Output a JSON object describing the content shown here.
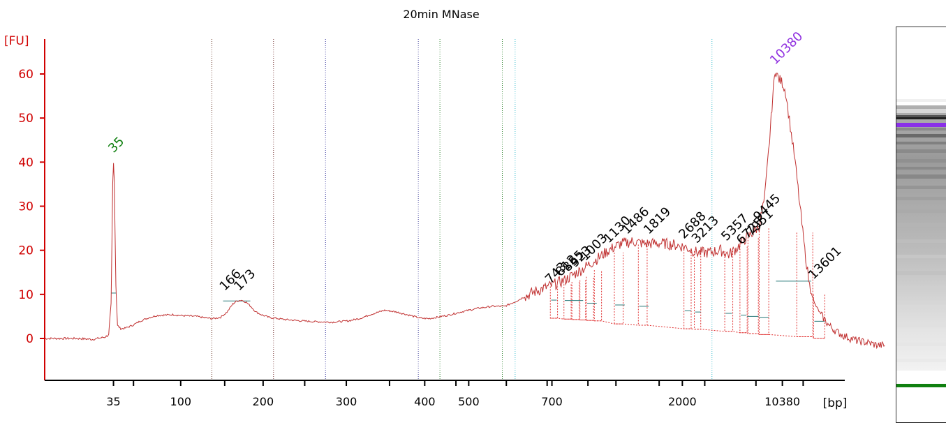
{
  "chart_data": {
    "type": "line",
    "title": "20min MNase",
    "xlabel": "[bp]",
    "ylabel": "[FU]",
    "ylim": [
      -9,
      68
    ],
    "yticks": [
      0,
      10,
      20,
      30,
      40,
      50,
      60
    ],
    "xaxis_scale": "nonlinear (migration-time based)",
    "xticks": [
      {
        "label": "35",
        "t": 0.086
      },
      {
        "label": "",
        "t": 0.111
      },
      {
        "label": "100",
        "t": 0.17
      },
      {
        "label": "",
        "t": 0.225
      },
      {
        "label": "200",
        "t": 0.273
      },
      {
        "label": "",
        "t": 0.325
      },
      {
        "label": "300",
        "t": 0.377
      },
      {
        "label": "",
        "t": 0.431
      },
      {
        "label": "400",
        "t": 0.475
      },
      {
        "label": "",
        "t": 0.514
      },
      {
        "label": "500",
        "t": 0.53
      },
      {
        "label": "",
        "t": 0.577
      },
      {
        "label": "",
        "t": 0.628
      },
      {
        "label": "700",
        "t": 0.634
      },
      {
        "label": "",
        "t": 0.679
      },
      {
        "label": "",
        "t": 0.714
      },
      {
        "label": "",
        "t": 0.768
      },
      {
        "label": "2000",
        "t": 0.797
      },
      {
        "label": "",
        "t": 0.825
      },
      {
        "label": "",
        "t": 0.889
      },
      {
        "label": "10380",
        "t": 0.922
      },
      {
        "label": "",
        "t": 0.948
      }
    ],
    "marker_lines": [
      {
        "t": 0.209,
        "color": "#6a3a2a"
      },
      {
        "t": 0.286,
        "color": "#7a3a3a"
      },
      {
        "t": 0.351,
        "color": "#3a3aa0"
      },
      {
        "t": 0.467,
        "color": "#4a4aa0"
      },
      {
        "t": 0.494,
        "color": "#3a8a3a"
      },
      {
        "t": 0.572,
        "color": "#3a8a3a"
      },
      {
        "t": 0.588,
        "color": "#40c0d0"
      },
      {
        "t": 0.834,
        "color": "#40c0d0"
      }
    ],
    "trace": [
      [
        0.0,
        0.0
      ],
      [
        0.04,
        0.0
      ],
      [
        0.06,
        -0.2
      ],
      [
        0.075,
        0.3
      ],
      [
        0.08,
        0.8
      ],
      [
        0.083,
        8.0
      ],
      [
        0.085,
        35.0
      ],
      [
        0.086,
        39.8
      ],
      [
        0.087,
        36.0
      ],
      [
        0.089,
        12.0
      ],
      [
        0.091,
        3.0
      ],
      [
        0.095,
        2.2
      ],
      [
        0.1,
        2.3
      ],
      [
        0.11,
        3.0
      ],
      [
        0.12,
        4.0
      ],
      [
        0.13,
        4.7
      ],
      [
        0.14,
        5.2
      ],
      [
        0.15,
        5.3
      ],
      [
        0.16,
        5.4
      ],
      [
        0.17,
        5.2
      ],
      [
        0.18,
        5.1
      ],
      [
        0.19,
        5.0
      ],
      [
        0.2,
        4.7
      ],
      [
        0.21,
        4.5
      ],
      [
        0.22,
        4.8
      ],
      [
        0.228,
        6.0
      ],
      [
        0.235,
        7.8
      ],
      [
        0.24,
        8.5
      ],
      [
        0.246,
        8.7
      ],
      [
        0.252,
        8.2
      ],
      [
        0.258,
        7.2
      ],
      [
        0.264,
        6.0
      ],
      [
        0.272,
        5.3
      ],
      [
        0.28,
        4.8
      ],
      [
        0.3,
        4.3
      ],
      [
        0.32,
        4.0
      ],
      [
        0.34,
        3.8
      ],
      [
        0.36,
        3.7
      ],
      [
        0.38,
        4.0
      ],
      [
        0.395,
        4.6
      ],
      [
        0.41,
        5.6
      ],
      [
        0.425,
        6.4
      ],
      [
        0.44,
        6.0
      ],
      [
        0.455,
        5.3
      ],
      [
        0.47,
        4.6
      ],
      [
        0.48,
        4.5
      ],
      [
        0.49,
        4.8
      ],
      [
        0.505,
        5.3
      ],
      [
        0.52,
        6.0
      ],
      [
        0.54,
        6.8
      ],
      [
        0.56,
        7.3
      ],
      [
        0.575,
        7.3
      ],
      [
        0.59,
        8.5
      ],
      [
        0.6,
        9.5
      ],
      [
        0.615,
        10.8
      ],
      [
        0.63,
        11.8
      ],
      [
        0.65,
        13.2
      ],
      [
        0.67,
        15.5
      ],
      [
        0.69,
        18.0
      ],
      [
        0.705,
        20.0
      ],
      [
        0.72,
        21.5
      ],
      [
        0.735,
        22.0
      ],
      [
        0.75,
        21.5
      ],
      [
        0.77,
        21.6
      ],
      [
        0.785,
        21.3
      ],
      [
        0.8,
        20.8
      ],
      [
        0.815,
        19.5
      ],
      [
        0.83,
        19.5
      ],
      [
        0.845,
        20.0
      ],
      [
        0.855,
        19.0
      ],
      [
        0.865,
        20.5
      ],
      [
        0.875,
        22.5
      ],
      [
        0.885,
        24.0
      ],
      [
        0.893,
        25.5
      ],
      [
        0.9,
        32.0
      ],
      [
        0.906,
        45.0
      ],
      [
        0.91,
        55.0
      ],
      [
        0.913,
        61.0
      ],
      [
        0.917,
        59.0
      ],
      [
        0.922,
        58.0
      ],
      [
        0.926,
        56.0
      ],
      [
        0.932,
        48.0
      ],
      [
        0.938,
        40.0
      ],
      [
        0.944,
        30.0
      ],
      [
        0.95,
        20.0
      ],
      [
        0.956,
        12.0
      ],
      [
        0.962,
        8.0
      ],
      [
        0.97,
        5.5
      ],
      [
        0.98,
        3.0
      ],
      [
        0.99,
        1.5
      ],
      [
        1.0,
        0.5
      ],
      [
        1.015,
        -0.5
      ],
      [
        1.03,
        -1.0
      ],
      [
        1.04,
        -1.5
      ],
      [
        1.05,
        -1.6
      ]
    ],
    "plateaus": [
      {
        "t0": 0.083,
        "t1": 0.089,
        "y": 10.3
      },
      {
        "t0": 0.223,
        "t1": 0.257,
        "y": 8.5
      },
      {
        "t0": 0.633,
        "t1": 0.64,
        "y": 8.7
      },
      {
        "t0": 0.65,
        "t1": 0.673,
        "y": 8.6
      },
      {
        "t0": 0.678,
        "t1": 0.69,
        "y": 8.0
      },
      {
        "t0": 0.713,
        "t1": 0.725,
        "y": 7.6
      },
      {
        "t0": 0.743,
        "t1": 0.755,
        "y": 7.3
      },
      {
        "t0": 0.8,
        "t1": 0.808,
        "y": 6.3
      },
      {
        "t0": 0.813,
        "t1": 0.82,
        "y": 6.0
      },
      {
        "t0": 0.851,
        "t1": 0.859,
        "y": 5.7
      },
      {
        "t0": 0.87,
        "t1": 0.877,
        "y": 5.3
      },
      {
        "t0": 0.878,
        "t1": 0.892,
        "y": 5.0
      },
      {
        "t0": 0.893,
        "t1": 0.905,
        "y": 4.8
      },
      {
        "t0": 0.914,
        "t1": 0.958,
        "y": 13.0
      },
      {
        "t0": 0.962,
        "t1": 0.975,
        "y": 3.9
      }
    ],
    "fragments": [
      {
        "t0": 0.632,
        "t1": 0.641,
        "top": 11.8,
        "base": 4.6
      },
      {
        "t0": 0.649,
        "t1": 0.658,
        "top": 12.3,
        "base": 4.4
      },
      {
        "t0": 0.659,
        "t1": 0.668,
        "top": 12.8,
        "base": 4.3
      },
      {
        "t0": 0.669,
        "t1": 0.676,
        "top": 13.2,
        "base": 4.2
      },
      {
        "t0": 0.677,
        "t1": 0.686,
        "top": 14.0,
        "base": 4.1
      },
      {
        "t0": 0.687,
        "t1": 0.696,
        "top": 15.5,
        "base": 4.0
      },
      {
        "t0": 0.712,
        "t1": 0.723,
        "top": 19.5,
        "base": 3.3
      },
      {
        "t0": 0.742,
        "t1": 0.753,
        "top": 21.3,
        "base": 3.0
      },
      {
        "t0": 0.799,
        "t1": 0.808,
        "top": 20.2,
        "base": 2.2
      },
      {
        "t0": 0.812,
        "t1": 0.82,
        "top": 19.8,
        "base": 2.1
      },
      {
        "t0": 0.85,
        "t1": 0.86,
        "top": 19.8,
        "base": 1.6
      },
      {
        "t0": 0.869,
        "t1": 0.878,
        "top": 21.0,
        "base": 1.3
      },
      {
        "t0": 0.879,
        "t1": 0.892,
        "top": 23.0,
        "base": 1.1
      },
      {
        "t0": 0.893,
        "t1": 0.905,
        "top": 25.0,
        "base": 0.9
      },
      {
        "t0": 0.94,
        "t1": 0.96,
        "top": 24.0,
        "base": 0.4
      },
      {
        "t0": 0.961,
        "t1": 0.975,
        "top": 10.0,
        "base": 0.0
      }
    ],
    "peak_labels": [
      {
        "label": "35",
        "t": 0.086,
        "y": 42.0,
        "color": "#108010"
      },
      {
        "label": "166",
        "t": 0.225,
        "y": 10.7,
        "color": "#000000"
      },
      {
        "label": "173",
        "t": 0.243,
        "y": 10.7,
        "color": "#000000"
      },
      {
        "label": "743",
        "t": 0.632,
        "y": 12.3,
        "color": "#000000"
      },
      {
        "label": "812",
        "t": 0.645,
        "y": 14.0,
        "color": "#000000"
      },
      {
        "label": "855",
        "t": 0.654,
        "y": 15.0,
        "color": "#000000"
      },
      {
        "label": "923",
        "t": 0.663,
        "y": 16.0,
        "color": "#000000"
      },
      {
        "label": "1003",
        "t": 0.676,
        "y": 17.5,
        "color": "#000000"
      },
      {
        "label": "1130",
        "t": 0.705,
        "y": 21.5,
        "color": "#000000"
      },
      {
        "label": "1486",
        "t": 0.728,
        "y": 23.5,
        "color": "#000000"
      },
      {
        "label": "1819",
        "t": 0.755,
        "y": 23.5,
        "color": "#000000"
      },
      {
        "label": "2688",
        "t": 0.799,
        "y": 22.5,
        "color": "#000000"
      },
      {
        "label": "3213",
        "t": 0.815,
        "y": 21.5,
        "color": "#000000"
      },
      {
        "label": "5357",
        "t": 0.852,
        "y": 22.0,
        "color": "#000000"
      },
      {
        "label": "6725",
        "t": 0.871,
        "y": 21.2,
        "color": "#000000"
      },
      {
        "label": "7951",
        "t": 0.883,
        "y": 23.0,
        "color": "#000000"
      },
      {
        "label": "9445",
        "t": 0.892,
        "y": 26.5,
        "color": "#000000"
      },
      {
        "label": "10380",
        "t": 0.913,
        "y": 62.0,
        "color": "#9030e0"
      },
      {
        "label": "13601",
        "t": 0.961,
        "y": 13.3,
        "color": "#000000"
      }
    ]
  },
  "gel": {
    "bands": [
      {
        "pos": 0.025,
        "height": 4,
        "color": "#f0f0f0"
      },
      {
        "pos": 0.055,
        "height": 6,
        "color": "#d8d8d8"
      },
      {
        "pos": 0.075,
        "height": 4,
        "color": "#555555"
      },
      {
        "pos": 0.083,
        "height": 3,
        "color": "#222222"
      },
      {
        "pos": 0.1,
        "height": 6,
        "color": "#8a30e8"
      },
      {
        "pos": 0.115,
        "height": 4,
        "color": "#8a8a8a"
      },
      {
        "pos": 0.135,
        "height": 5,
        "color": "#6a6a6a"
      },
      {
        "pos": 0.16,
        "height": 4,
        "color": "#808080"
      },
      {
        "pos": 0.185,
        "height": 5,
        "color": "#8a8a8a"
      },
      {
        "pos": 0.215,
        "height": 5,
        "color": "#909090"
      },
      {
        "pos": 0.24,
        "height": 4,
        "color": "#8a8a8a"
      },
      {
        "pos": 0.265,
        "height": 6,
        "color": "#888888"
      },
      {
        "pos": 0.3,
        "height": 5,
        "color": "#959595"
      },
      {
        "pos": 0.335,
        "height": 5,
        "color": "#a0a0a0"
      },
      {
        "pos": 0.375,
        "height": 5,
        "color": "#aaaaaa"
      },
      {
        "pos": 0.42,
        "height": 5,
        "color": "#b4b4b4"
      },
      {
        "pos": 0.47,
        "height": 5,
        "color": "#bdbdbd"
      },
      {
        "pos": 0.52,
        "height": 5,
        "color": "#c6c6c6"
      },
      {
        "pos": 0.57,
        "height": 6,
        "color": "#c2c2c2"
      },
      {
        "pos": 0.62,
        "height": 5,
        "color": "#cfcfcf"
      },
      {
        "pos": 0.68,
        "height": 5,
        "color": "#d9d9d9"
      },
      {
        "pos": 0.74,
        "height": 5,
        "color": "#e0e0e0"
      },
      {
        "pos": 0.8,
        "height": 5,
        "color": "#e6e6e6"
      },
      {
        "pos": 0.85,
        "height": 5,
        "color": "#eaeaea"
      },
      {
        "pos": 0.93,
        "height": 5,
        "color": "#108010"
      }
    ]
  }
}
